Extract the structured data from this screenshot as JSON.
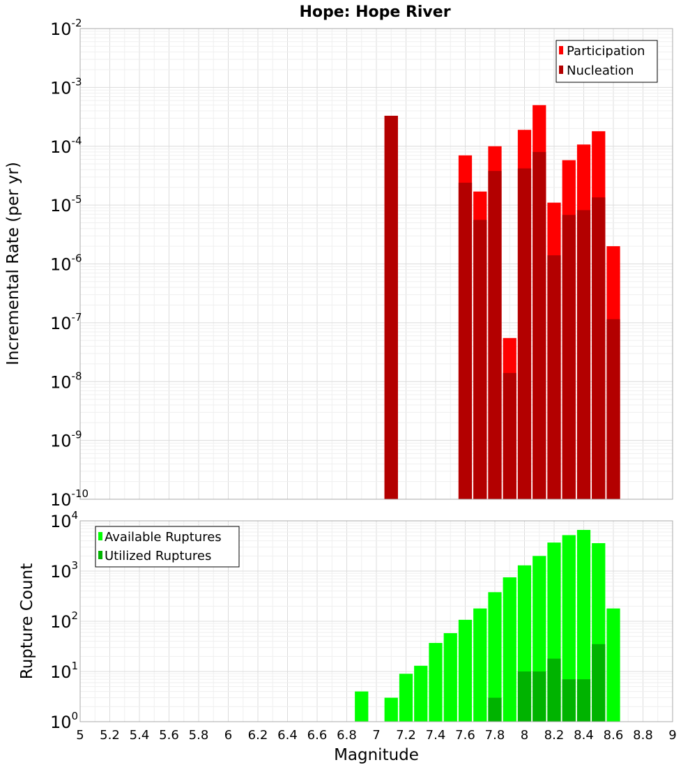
{
  "chart_data": [
    {
      "type": "bar",
      "title": "Hope: Hope River",
      "xlabel": "Magnitude",
      "ylabel": "Incremental Rate (per yr)",
      "yscale": "log",
      "ylim_exponents": [
        -10,
        -2
      ],
      "xlim": [
        5,
        9
      ],
      "bin_width": 0.1,
      "grid": true,
      "legend_position": "top-right",
      "x": [
        7.1,
        7.6,
        7.7,
        7.8,
        7.9,
        8.0,
        8.1,
        8.2,
        8.3,
        8.4,
        8.5,
        8.6
      ],
      "series": [
        {
          "name": "Participation",
          "color": "#ff0000",
          "values": [
            0.00033,
            7e-05,
            1.7e-05,
            0.0001,
            5.5e-08,
            0.00019,
            0.0005,
            1.1e-05,
            5.8e-05,
            0.000107,
            0.00018,
            2e-06
          ]
        },
        {
          "name": "Nucleation",
          "color": "#b30000",
          "values": [
            0.00033,
            2.4e-05,
            5.6e-06,
            3.8e-05,
            1.4e-08,
            4.2e-05,
            8e-05,
            1.4e-06,
            6.8e-06,
            8.2e-06,
            1.35e-05,
            1.15e-07
          ]
        }
      ]
    },
    {
      "type": "bar",
      "title": "",
      "xlabel": "Magnitude",
      "ylabel": "Rupture Count",
      "yscale": "log",
      "ylim_exponents": [
        0,
        4
      ],
      "xlim": [
        5,
        9
      ],
      "bin_width": 0.1,
      "grid": true,
      "legend_position": "top-left",
      "x": [
        6.9,
        7.0,
        7.1,
        7.2,
        7.3,
        7.4,
        7.5,
        7.6,
        7.7,
        7.8,
        7.9,
        8.0,
        8.1,
        8.2,
        8.3,
        8.4,
        8.5,
        8.6
      ],
      "series": [
        {
          "name": "Available Ruptures",
          "color": "#00ff00",
          "values": [
            4,
            1,
            3,
            9,
            13,
            37,
            58,
            107,
            180,
            380,
            750,
            1300,
            2000,
            3700,
            5200,
            6600,
            3600,
            180
          ]
        },
        {
          "name": "Utilized Ruptures",
          "color": "#00b300",
          "values": [
            0,
            0,
            1,
            0,
            0,
            0,
            0,
            1,
            1,
            3,
            1,
            10,
            10,
            18,
            7,
            7,
            35,
            1
          ]
        }
      ]
    }
  ]
}
